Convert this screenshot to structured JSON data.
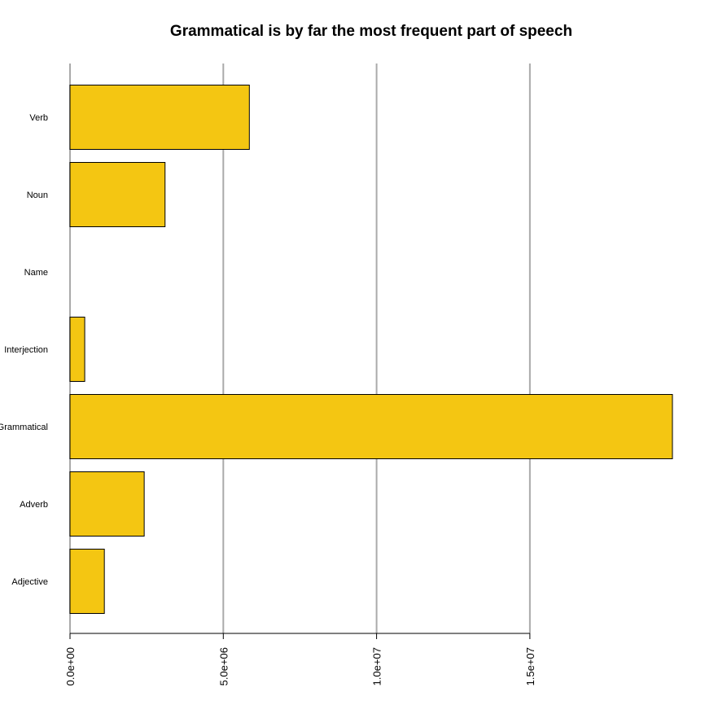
{
  "chart_data": {
    "type": "bar",
    "orientation": "horizontal",
    "title": "Grammatical is by far the most frequent part of speech",
    "xlabel": "",
    "ylabel": "",
    "categories": [
      "Verb",
      "Noun",
      "Name",
      "Interjection",
      "Grammatical",
      "Adverb",
      "Adjective"
    ],
    "values": [
      5850000,
      3100000,
      0,
      480000,
      19650000,
      2420000,
      1120000
    ],
    "xlim": [
      0,
      19650000
    ],
    "x_ticks": [
      {
        "value": 0,
        "label": "0.0e+00"
      },
      {
        "value": 5000000,
        "label": "5.0e+06"
      },
      {
        "value": 10000000,
        "label": "1.0e+07"
      },
      {
        "value": 15000000,
        "label": "1.5e+07"
      }
    ],
    "grid": "vertical",
    "legend": "none",
    "bar_color": "#f4c612",
    "bar_border_color": "#000000",
    "grid_color": "#aaaaaa"
  }
}
